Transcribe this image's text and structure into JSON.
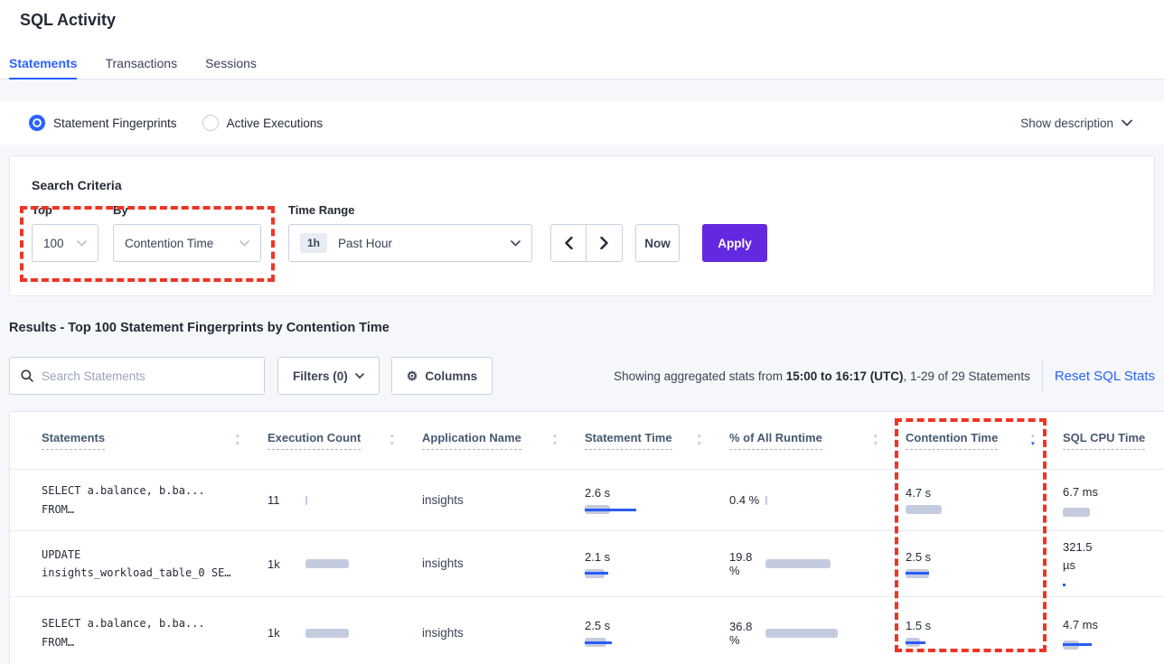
{
  "page": {
    "title": "SQL Activity"
  },
  "tabs": [
    {
      "label": "Statements",
      "active": true
    },
    {
      "label": "Transactions",
      "active": false
    },
    {
      "label": "Sessions",
      "active": false
    }
  ],
  "view_toggle": {
    "options": [
      {
        "label": "Statement Fingerprints",
        "selected": true
      },
      {
        "label": "Active Executions",
        "selected": false
      }
    ],
    "show_description": "Show description"
  },
  "search_criteria": {
    "title": "Search Criteria",
    "top": {
      "label": "Top",
      "value": "100"
    },
    "by": {
      "label": "By",
      "value": "Contention Time"
    },
    "time_range": {
      "label": "Time Range",
      "badge": "1h",
      "value": "Past Hour"
    },
    "now_label": "Now",
    "apply_label": "Apply"
  },
  "results": {
    "heading": "Results - Top 100 Statement Fingerprints by Contention Time",
    "search_placeholder": "Search Statements",
    "filters_label": "Filters (0)",
    "columns_label": "Columns",
    "stats_prefix": "Showing aggregated stats from ",
    "stats_bold": "15:00 to 16:17 (UTC)",
    "stats_suffix": ", 1-29 of 29 Statements",
    "reset_label": "Reset SQL Stats"
  },
  "table": {
    "headers": [
      "Statements",
      "Execution Count",
      "Application Name",
      "Statement Time",
      "% of All Runtime",
      "Contention Time",
      "SQL CPU Time"
    ],
    "sorted_column": "Contention Time",
    "sort_direction": "desc",
    "rows": [
      {
        "statement_line1": "SELECT a.balance, b.ba...",
        "statement_line2": "FROM…",
        "execution_count": "11",
        "exec_bar": {
          "gray": 2,
          "blue": 0
        },
        "application": "insights",
        "statement_time": "2.6 s",
        "stmt_bar": {
          "gray": 28,
          "blue": 57
        },
        "pct_runtime": "0.4 %",
        "pct_bar": {
          "gray": 2,
          "blue": 0
        },
        "contention_time": "4.7 s",
        "cont_bar": {
          "gray": 40,
          "blue": 0
        },
        "sql_cpu": "6.7 ms",
        "cpu_bar": {
          "gray": 30,
          "blue": 0
        }
      },
      {
        "statement_line1": "UPDATE",
        "statement_line2": "insights_workload_table_0 SE…",
        "execution_count": "1k",
        "exec_bar": {
          "gray": 48,
          "blue": 0
        },
        "application": "insights",
        "statement_time": "2.1 s",
        "stmt_bar": {
          "gray": 22,
          "blue": 26
        },
        "pct_runtime": "19.8 %",
        "pct_bar": {
          "gray": 72,
          "blue": 0
        },
        "contention_time": "2.5 s",
        "cont_bar": {
          "gray": 26,
          "blue": 26
        },
        "sql_cpu": "321.5 µs",
        "cpu_bar": {
          "gray": 0,
          "blue": 3
        }
      },
      {
        "statement_line1": "SELECT a.balance, b.ba...",
        "statement_line2": "FROM…",
        "execution_count": "1k",
        "exec_bar": {
          "gray": 48,
          "blue": 0
        },
        "application": "insights",
        "statement_time": "2.5 s",
        "stmt_bar": {
          "gray": 24,
          "blue": 30
        },
        "pct_runtime": "36.8 %",
        "pct_bar": {
          "gray": 80,
          "blue": 0
        },
        "contention_time": "1.5 s",
        "cont_bar": {
          "gray": 16,
          "blue": 22
        },
        "sql_cpu": "4.7 ms",
        "cpu_bar": {
          "gray": 18,
          "blue": 32
        }
      }
    ]
  },
  "icons": {
    "sort_up": "▲",
    "sort_down": "▼",
    "gear": "⚙"
  },
  "colors": {
    "accent_blue": "#2962ff",
    "apply_purple": "#6229e0",
    "annotation_red": "#ef3424",
    "bar_gray": "#c5cbdf",
    "bar_blue": "#2a5cf8"
  }
}
